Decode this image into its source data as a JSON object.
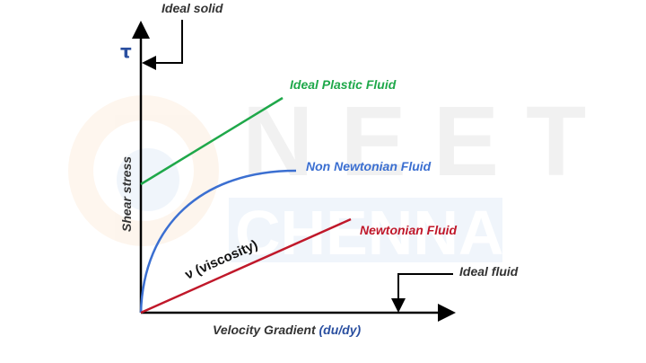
{
  "watermark": {
    "line1": "NEET",
    "line2": "CHENNAI"
  },
  "axes": {
    "y_symbol": "τ",
    "y_label": "Shear stress",
    "x_label": "Velocity Gradient",
    "x_label_unit": "(du/dy)"
  },
  "curves": {
    "ideal_plastic": {
      "label": "Ideal Plastic Fluid",
      "color": "#1fa84a"
    },
    "non_newtonian": {
      "label": "Non Newtonian Fluid",
      "color": "#3b6fd1"
    },
    "newtonian": {
      "label": "Newtonian Fluid",
      "color": "#c0182a"
    }
  },
  "annotations": {
    "ideal_solid": "Ideal solid",
    "ideal_fluid": "Ideal fluid",
    "viscosity": "ν (viscosity)"
  },
  "colors": {
    "axis": "#000000",
    "text": "#333333",
    "accent_blue": "#2a4fa0"
  }
}
